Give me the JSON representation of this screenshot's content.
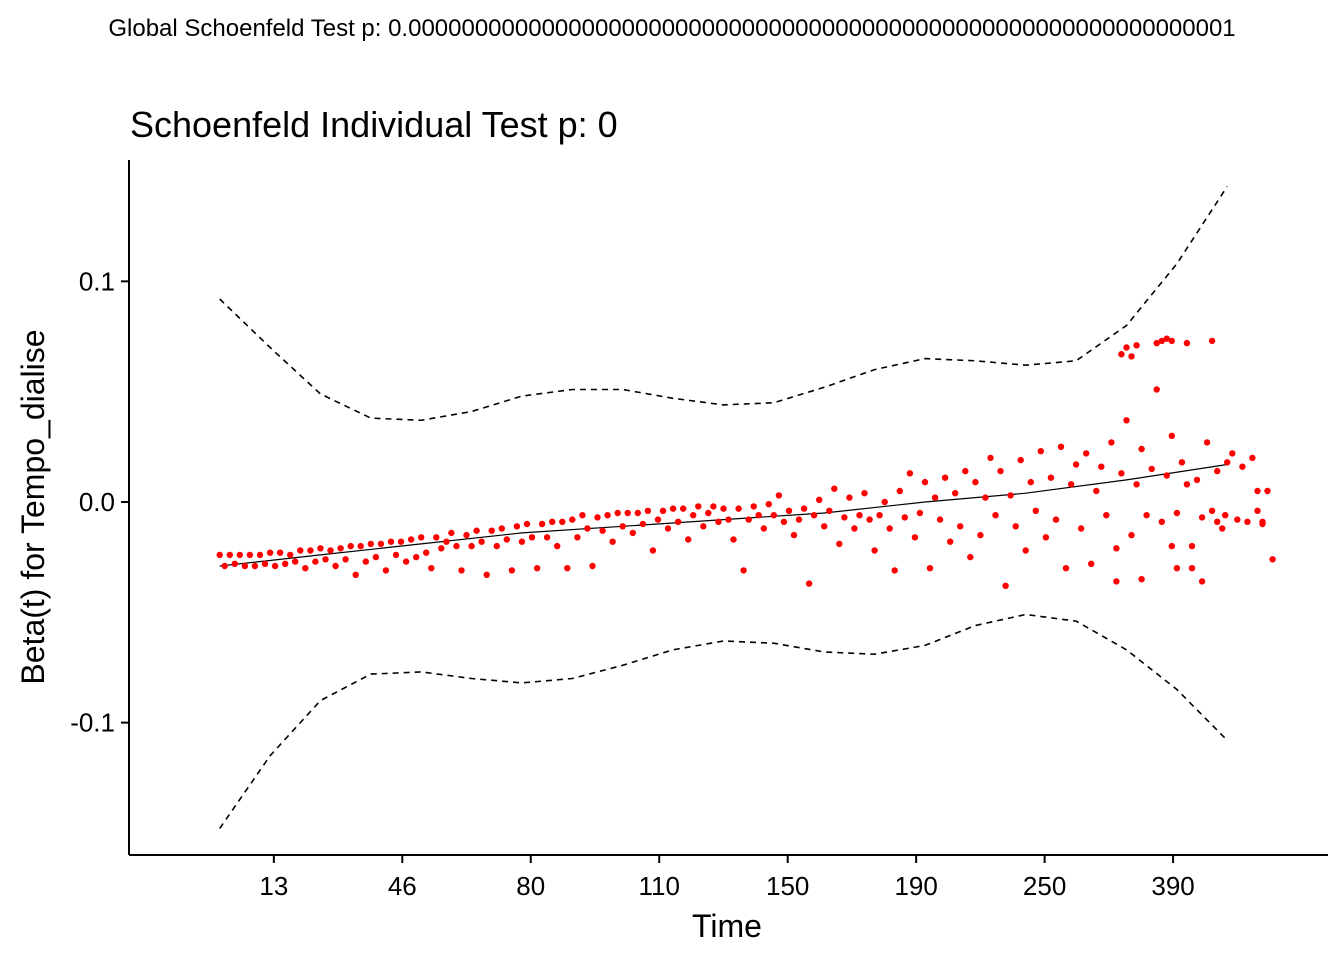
{
  "chart_data": {
    "type": "scatter",
    "global_title": "Global Schoenfeld Test p: 0.00000000000000000000000000000000000000000000000000000000000001",
    "title": "Schoenfeld Individual Test p: 0",
    "xlabel": "Time",
    "ylabel": "Beta(t) for Tempo_dialise",
    "x_scale": "rank",
    "x_tick_labels": [
      "13",
      "46",
      "80",
      "110",
      "150",
      "190",
      "250",
      "390"
    ],
    "y_ticks": [
      -0.1,
      0.0,
      0.1
    ],
    "y_tick_labels": [
      "-0.1",
      "0.0",
      "0.1"
    ],
    "ylim": [
      -0.16,
      0.155
    ],
    "xlim": [
      -0.09,
      1.1
    ],
    "grid": false,
    "legend": "none",
    "colors": {
      "points": "#ff0000",
      "fit": "#000000",
      "band": "#000000"
    },
    "series": [
      {
        "kind": "line",
        "style": "solid",
        "x": [
          0.0,
          0.1,
          0.2,
          0.3,
          0.4,
          0.5,
          0.6,
          0.7,
          0.8,
          0.9,
          1.0
        ],
        "y": [
          -0.029,
          -0.024,
          -0.019,
          -0.014,
          -0.011,
          -0.008,
          -0.005,
          0.0,
          0.004,
          0.01,
          0.017
        ]
      },
      {
        "kind": "line",
        "style": "dashed",
        "x": [
          0.0,
          0.05,
          0.1,
          0.15,
          0.2,
          0.25,
          0.3,
          0.35,
          0.4,
          0.45,
          0.5,
          0.55,
          0.6,
          0.65,
          0.7,
          0.75,
          0.8,
          0.85,
          0.9,
          0.95,
          1.0
        ],
        "y": [
          0.092,
          0.07,
          0.049,
          0.038,
          0.037,
          0.041,
          0.048,
          0.051,
          0.051,
          0.047,
          0.044,
          0.045,
          0.052,
          0.06,
          0.065,
          0.064,
          0.062,
          0.064,
          0.08,
          0.108,
          0.143
        ]
      },
      {
        "kind": "line",
        "style": "dashed",
        "x": [
          0.0,
          0.05,
          0.1,
          0.15,
          0.2,
          0.25,
          0.3,
          0.35,
          0.4,
          0.45,
          0.5,
          0.55,
          0.6,
          0.65,
          0.7,
          0.75,
          0.8,
          0.85,
          0.9,
          0.95,
          1.0
        ],
        "y": [
          -0.148,
          -0.115,
          -0.09,
          -0.078,
          -0.077,
          -0.08,
          -0.082,
          -0.08,
          -0.074,
          -0.067,
          -0.063,
          -0.064,
          -0.068,
          -0.069,
          -0.065,
          -0.056,
          -0.051,
          -0.054,
          -0.067,
          -0.085,
          -0.108
        ]
      },
      {
        "kind": "points",
        "points": [
          [
            0.0,
            -0.024
          ],
          [
            0.005,
            -0.029
          ],
          [
            0.01,
            -0.024
          ],
          [
            0.015,
            -0.028
          ],
          [
            0.02,
            -0.024
          ],
          [
            0.025,
            -0.029
          ],
          [
            0.03,
            -0.024
          ],
          [
            0.035,
            -0.029
          ],
          [
            0.04,
            -0.024
          ],
          [
            0.045,
            -0.028
          ],
          [
            0.05,
            -0.023
          ],
          [
            0.055,
            -0.029
          ],
          [
            0.06,
            -0.023
          ],
          [
            0.065,
            -0.028
          ],
          [
            0.07,
            -0.024
          ],
          [
            0.075,
            -0.027
          ],
          [
            0.08,
            -0.022
          ],
          [
            0.085,
            -0.03
          ],
          [
            0.09,
            -0.022
          ],
          [
            0.095,
            -0.027
          ],
          [
            0.1,
            -0.021
          ],
          [
            0.105,
            -0.026
          ],
          [
            0.11,
            -0.022
          ],
          [
            0.115,
            -0.029
          ],
          [
            0.12,
            -0.021
          ],
          [
            0.125,
            -0.026
          ],
          [
            0.13,
            -0.02
          ],
          [
            0.135,
            -0.033
          ],
          [
            0.14,
            -0.02
          ],
          [
            0.145,
            -0.027
          ],
          [
            0.15,
            -0.019
          ],
          [
            0.155,
            -0.025
          ],
          [
            0.16,
            -0.019
          ],
          [
            0.165,
            -0.031
          ],
          [
            0.17,
            -0.018
          ],
          [
            0.175,
            -0.024
          ],
          [
            0.18,
            -0.018
          ],
          [
            0.185,
            -0.027
          ],
          [
            0.19,
            -0.017
          ],
          [
            0.195,
            -0.025
          ],
          [
            0.2,
            -0.016
          ],
          [
            0.205,
            -0.023
          ],
          [
            0.21,
            -0.03
          ],
          [
            0.215,
            -0.016
          ],
          [
            0.22,
            -0.021
          ],
          [
            0.225,
            -0.018
          ],
          [
            0.23,
            -0.014
          ],
          [
            0.235,
            -0.02
          ],
          [
            0.24,
            -0.031
          ],
          [
            0.245,
            -0.015
          ],
          [
            0.25,
            -0.02
          ],
          [
            0.255,
            -0.013
          ],
          [
            0.26,
            -0.018
          ],
          [
            0.265,
            -0.033
          ],
          [
            0.27,
            -0.013
          ],
          [
            0.275,
            -0.02
          ],
          [
            0.28,
            -0.012
          ],
          [
            0.285,
            -0.017
          ],
          [
            0.29,
            -0.031
          ],
          [
            0.295,
            -0.011
          ],
          [
            0.3,
            -0.018
          ],
          [
            0.305,
            -0.01
          ],
          [
            0.31,
            -0.016
          ],
          [
            0.315,
            -0.03
          ],
          [
            0.32,
            -0.01
          ],
          [
            0.325,
            -0.016
          ],
          [
            0.33,
            -0.009
          ],
          [
            0.335,
            -0.02
          ],
          [
            0.34,
            -0.009
          ],
          [
            0.345,
            -0.03
          ],
          [
            0.35,
            -0.008
          ],
          [
            0.355,
            -0.016
          ],
          [
            0.36,
            -0.006
          ],
          [
            0.365,
            -0.012
          ],
          [
            0.37,
            -0.029
          ],
          [
            0.375,
            -0.007
          ],
          [
            0.38,
            -0.013
          ],
          [
            0.385,
            -0.006
          ],
          [
            0.39,
            -0.018
          ],
          [
            0.395,
            -0.005
          ],
          [
            0.4,
            -0.011
          ],
          [
            0.405,
            -0.005
          ],
          [
            0.41,
            -0.014
          ],
          [
            0.415,
            -0.005
          ],
          [
            0.42,
            -0.01
          ],
          [
            0.425,
            -0.004
          ],
          [
            0.43,
            -0.022
          ],
          [
            0.435,
            -0.008
          ],
          [
            0.44,
            -0.004
          ],
          [
            0.445,
            -0.012
          ],
          [
            0.45,
            -0.003
          ],
          [
            0.455,
            -0.009
          ],
          [
            0.46,
            -0.003
          ],
          [
            0.465,
            -0.017
          ],
          [
            0.47,
            -0.006
          ],
          [
            0.475,
            -0.002
          ],
          [
            0.48,
            -0.011
          ],
          [
            0.485,
            -0.005
          ],
          [
            0.49,
            -0.002
          ],
          [
            0.495,
            -0.009
          ],
          [
            0.5,
            -0.003
          ],
          [
            0.505,
            -0.008
          ],
          [
            0.51,
            -0.017
          ],
          [
            0.515,
            -0.003
          ],
          [
            0.52,
            -0.031
          ],
          [
            0.525,
            -0.008
          ],
          [
            0.53,
            -0.002
          ],
          [
            0.535,
            -0.006
          ],
          [
            0.54,
            -0.012
          ],
          [
            0.545,
            -0.001
          ],
          [
            0.55,
            -0.006
          ],
          [
            0.555,
            0.003
          ],
          [
            0.56,
            -0.009
          ],
          [
            0.565,
            -0.004
          ],
          [
            0.57,
            -0.015
          ],
          [
            0.575,
            -0.008
          ],
          [
            0.58,
            -0.003
          ],
          [
            0.585,
            -0.037
          ],
          [
            0.59,
            -0.006
          ],
          [
            0.595,
            0.001
          ],
          [
            0.6,
            -0.011
          ],
          [
            0.605,
            -0.004
          ],
          [
            0.61,
            0.006
          ],
          [
            0.615,
            -0.019
          ],
          [
            0.62,
            -0.007
          ],
          [
            0.625,
            0.002
          ],
          [
            0.63,
            -0.012
          ],
          [
            0.635,
            -0.006
          ],
          [
            0.64,
            0.004
          ],
          [
            0.645,
            -0.008
          ],
          [
            0.65,
            -0.022
          ],
          [
            0.655,
            -0.006
          ],
          [
            0.66,
            0.0
          ],
          [
            0.665,
            -0.012
          ],
          [
            0.67,
            -0.031
          ],
          [
            0.675,
            0.005
          ],
          [
            0.68,
            -0.007
          ],
          [
            0.685,
            0.013
          ],
          [
            0.69,
            -0.016
          ],
          [
            0.695,
            -0.005
          ],
          [
            0.7,
            0.009
          ],
          [
            0.705,
            -0.03
          ],
          [
            0.71,
            0.002
          ],
          [
            0.715,
            -0.008
          ],
          [
            0.72,
            0.011
          ],
          [
            0.725,
            -0.018
          ],
          [
            0.73,
            0.004
          ],
          [
            0.735,
            -0.011
          ],
          [
            0.74,
            0.014
          ],
          [
            0.745,
            -0.025
          ],
          [
            0.75,
            0.009
          ],
          [
            0.755,
            -0.015
          ],
          [
            0.76,
            0.002
          ],
          [
            0.765,
            0.02
          ],
          [
            0.77,
            -0.006
          ],
          [
            0.775,
            0.014
          ],
          [
            0.78,
            -0.038
          ],
          [
            0.785,
            0.003
          ],
          [
            0.79,
            -0.011
          ],
          [
            0.795,
            0.019
          ],
          [
            0.8,
            -0.022
          ],
          [
            0.805,
            0.009
          ],
          [
            0.81,
            -0.004
          ],
          [
            0.815,
            0.023
          ],
          [
            0.82,
            -0.016
          ],
          [
            0.825,
            0.011
          ],
          [
            0.83,
            -0.008
          ],
          [
            0.835,
            0.025
          ],
          [
            0.84,
            -0.03
          ],
          [
            0.845,
            0.008
          ],
          [
            0.85,
            0.017
          ],
          [
            0.855,
            -0.012
          ],
          [
            0.86,
            0.022
          ],
          [
            0.865,
            -0.028
          ],
          [
            0.87,
            0.005
          ],
          [
            0.875,
            0.016
          ],
          [
            0.88,
            -0.006
          ],
          [
            0.885,
            0.027
          ],
          [
            0.89,
            -0.021
          ],
          [
            0.895,
            0.013
          ],
          [
            0.9,
            0.037
          ],
          [
            0.905,
            -0.015
          ],
          [
            0.91,
            0.008
          ],
          [
            0.915,
            0.024
          ],
          [
            0.92,
            -0.006
          ],
          [
            0.925,
            0.015
          ],
          [
            0.93,
            0.051
          ],
          [
            0.935,
            -0.009
          ],
          [
            0.94,
            0.012
          ],
          [
            0.945,
            0.03
          ],
          [
            0.95,
            -0.005
          ],
          [
            0.955,
            0.018
          ],
          [
            0.96,
            0.008
          ],
          [
            0.965,
            -0.02
          ],
          [
            0.97,
            0.01
          ],
          [
            0.975,
            -0.036
          ],
          [
            0.98,
            0.027
          ],
          [
            0.985,
            -0.004
          ],
          [
            0.99,
            0.014
          ],
          [
            0.995,
            -0.012
          ],
          [
            1.0,
            0.018
          ],
          [
            1.005,
            0.022
          ],
          [
            1.01,
            -0.008
          ],
          [
            1.015,
            0.016
          ],
          [
            1.02,
            -0.009
          ],
          [
            1.025,
            0.02
          ],
          [
            1.03,
            -0.004
          ],
          [
            1.035,
            -0.01
          ],
          [
            1.04,
            0.005
          ],
          [
            1.045,
            -0.026
          ],
          [
            0.895,
            0.067
          ],
          [
            0.9,
            0.07
          ],
          [
            0.905,
            0.066
          ],
          [
            0.91,
            0.071
          ],
          [
            0.93,
            0.072
          ],
          [
            0.935,
            0.073
          ],
          [
            0.94,
            0.074
          ],
          [
            0.945,
            0.073
          ],
          [
            0.96,
            0.072
          ],
          [
            0.985,
            0.073
          ],
          [
            0.89,
            -0.036
          ],
          [
            0.915,
            -0.035
          ],
          [
            0.945,
            -0.02
          ],
          [
            0.95,
            -0.03
          ],
          [
            0.965,
            -0.03
          ],
          [
            0.975,
            -0.007
          ],
          [
            0.99,
            -0.009
          ],
          [
            0.998,
            -0.006
          ],
          [
            1.035,
            -0.009
          ],
          [
            1.03,
            0.005
          ]
        ]
      }
    ]
  }
}
